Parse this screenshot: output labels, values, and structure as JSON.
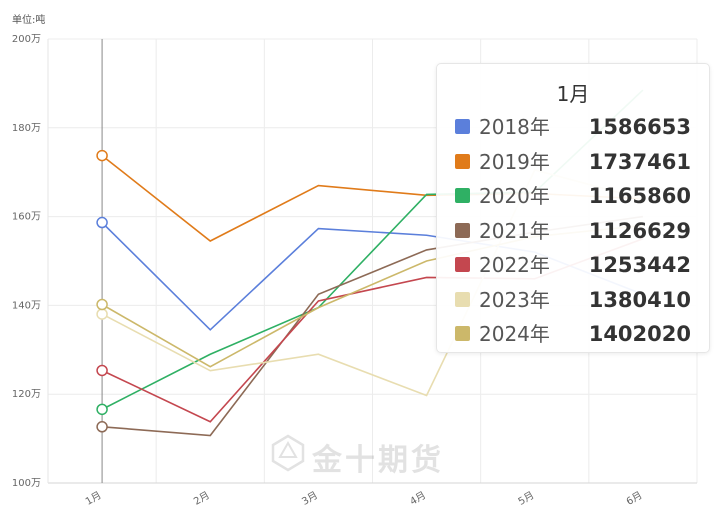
{
  "chart_data": {
    "type": "line",
    "unit_label": "单位:吨",
    "categories": [
      "1月",
      "2月",
      "3月",
      "4月",
      "5月",
      "6月"
    ],
    "y_ticks": [
      "100万",
      "120万",
      "140万",
      "160万",
      "180万",
      "200万"
    ],
    "ylim": [
      1000000,
      2000000
    ],
    "grid": true,
    "series": [
      {
        "name": "2018年",
        "color": "#5b7fdb",
        "values": [
          1586653,
          1345000,
          1573000,
          1558000,
          1520000,
          1425000
        ]
      },
      {
        "name": "2019年",
        "color": "#e07b1a",
        "values": [
          1737461,
          1545000,
          1670000,
          1648000,
          1652000,
          1640000
        ]
      },
      {
        "name": "2020年",
        "color": "#2fb064",
        "values": [
          1165860,
          1290000,
          1395000,
          1650000,
          1655000,
          1885000
        ]
      },
      {
        "name": "2021年",
        "color": "#8d6a56",
        "values": [
          1126629,
          1107000,
          1425000,
          1525000,
          1565000,
          1600000
        ]
      },
      {
        "name": "2022年",
        "color": "#c4474f",
        "values": [
          1253442,
          1138000,
          1410000,
          1463000,
          1460000,
          1550000
        ]
      },
      {
        "name": "2023年",
        "color": "#e8ddb0",
        "values": [
          1380410,
          1253000,
          1290000,
          1197000,
          1705000,
          1640000
        ]
      },
      {
        "name": "2024年",
        "color": "#ccb86a",
        "values": [
          1402020,
          1262000,
          1395000,
          1500000,
          1555000,
          1580000
        ]
      }
    ],
    "tooltip": {
      "title": "1月",
      "rows": [
        {
          "name": "2018年",
          "value": "1586653",
          "color": "#5b7fdb"
        },
        {
          "name": "2019年",
          "value": "1737461",
          "color": "#e07b1a"
        },
        {
          "name": "2020年",
          "value": "1165860",
          "color": "#2fb064"
        },
        {
          "name": "2021年",
          "value": "1126629",
          "color": "#8d6a56"
        },
        {
          "name": "2022年",
          "value": "1253442",
          "color": "#c4474f"
        },
        {
          "name": "2023年",
          "value": "1380410",
          "color": "#e8ddb0"
        },
        {
          "name": "2024年",
          "value": "1402020",
          "color": "#ccb86a"
        }
      ]
    },
    "highlight_category": "1月"
  },
  "watermark": {
    "text": "金十期货"
  }
}
